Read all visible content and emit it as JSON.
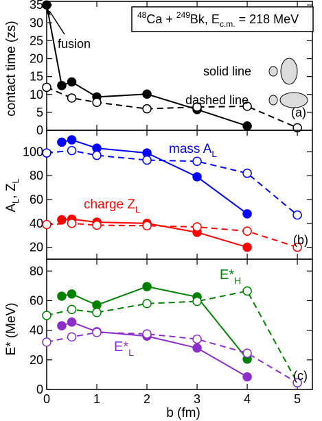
{
  "chart_data": [
    {
      "type": "line",
      "panel_label": "(a)",
      "ylabel": "contact time (zs)",
      "ylim": [
        0,
        36
      ],
      "yticks": [
        0,
        5,
        10,
        15,
        20,
        25,
        30,
        35
      ],
      "xlim": [
        0,
        5.3
      ],
      "title_box": {
        "ion1_mass": "48",
        "ion1_sym": "Ca + ",
        "ion2_mass": "249",
        "ion2_sym": "Bk, E",
        "ecm_sub": "c.m.",
        "energy": " = 218 MeV"
      },
      "annotations": {
        "fusion": "fusion",
        "solid": "solid line",
        "dashed": "dashed line"
      },
      "series": [
        {
          "style": "solid",
          "marker": "filled",
          "color": "#000000",
          "x": [
            0,
            0.3,
            0.5,
            1,
            2,
            3,
            4
          ],
          "y": [
            35,
            12.5,
            13.5,
            9.3,
            10.1,
            5.8,
            1.2
          ]
        },
        {
          "style": "dashed",
          "marker": "open",
          "color": "#000000",
          "x": [
            0,
            0.5,
            1,
            2,
            3,
            4,
            5
          ],
          "y": [
            12,
            9,
            7.8,
            6,
            6.5,
            6.7,
            0.7
          ]
        }
      ]
    },
    {
      "type": "line",
      "panel_label": "(b)",
      "ylabel": "A_L, Z_L",
      "ylim": [
        10,
        118
      ],
      "yticks": [
        20,
        40,
        60,
        80,
        100
      ],
      "xlim": [
        0,
        5.3
      ],
      "series": [
        {
          "name": "mass A_L",
          "style": "solid",
          "marker": "filled",
          "color": "#0000ff",
          "x": [
            0.3,
            0.5,
            1,
            2,
            3,
            4
          ],
          "y": [
            108,
            110,
            103,
            99,
            79,
            48
          ]
        },
        {
          "style": "dashed",
          "marker": "open",
          "color": "#0000ff",
          "x": [
            0,
            0.5,
            1,
            2,
            3,
            4,
            5
          ],
          "y": [
            99,
            101,
            97,
            93,
            92,
            82,
            47
          ]
        },
        {
          "name": "charge Z_L",
          "style": "solid",
          "marker": "filled",
          "color": "#ff0000",
          "x": [
            0.3,
            0.5,
            1,
            2,
            3,
            4
          ],
          "y": [
            43,
            43.5,
            41,
            40,
            32.5,
            20
          ]
        },
        {
          "style": "dashed",
          "marker": "open",
          "color": "#ff0000",
          "x": [
            0,
            0.5,
            1,
            2,
            3,
            4,
            5
          ],
          "y": [
            39,
            40,
            38.5,
            38,
            37,
            33.5,
            20
          ]
        }
      ],
      "labels": {
        "mass_main": "mass A",
        "mass_sub": "L",
        "charge_main": "charge Z",
        "charge_sub": "L"
      }
    },
    {
      "type": "line",
      "panel_label": "(c)",
      "ylabel": "E* (MeV)",
      "ylim": [
        0,
        88
      ],
      "yticks": [
        0,
        20,
        40,
        60,
        80
      ],
      "xlim": [
        0,
        5.3
      ],
      "xlabel": "b (fm)",
      "xticks": [
        0,
        1,
        2,
        3,
        4,
        5
      ],
      "series": [
        {
          "name": "E*_H",
          "style": "solid",
          "marker": "filled",
          "color": "#008000",
          "x": [
            0.3,
            0.5,
            1,
            2,
            3,
            4
          ],
          "y": [
            63,
            64.5,
            57,
            69.5,
            62.5,
            20.5
          ]
        },
        {
          "style": "dashed",
          "marker": "open",
          "color": "#008000",
          "x": [
            0,
            0.5,
            1,
            2,
            3,
            4,
            5
          ],
          "y": [
            50,
            54,
            52,
            58,
            59.5,
            66.5,
            4.5
          ]
        },
        {
          "name": "E*_L",
          "style": "solid",
          "marker": "filled",
          "color": "#8b2fc9",
          "x": [
            0.3,
            0.5,
            1,
            2,
            3,
            4
          ],
          "y": [
            43,
            45.5,
            39,
            36,
            28,
            8.5
          ]
        },
        {
          "style": "dashed",
          "marker": "open",
          "color": "#8b2fc9",
          "x": [
            0,
            0.5,
            1,
            2,
            3,
            4,
            5
          ],
          "y": [
            32,
            35.5,
            38.5,
            37.5,
            34,
            24.5,
            4.5
          ]
        }
      ],
      "labels": {
        "eh_main": "E*",
        "eh_sub": "H",
        "el_main": "E*",
        "el_sub": "L"
      }
    }
  ]
}
